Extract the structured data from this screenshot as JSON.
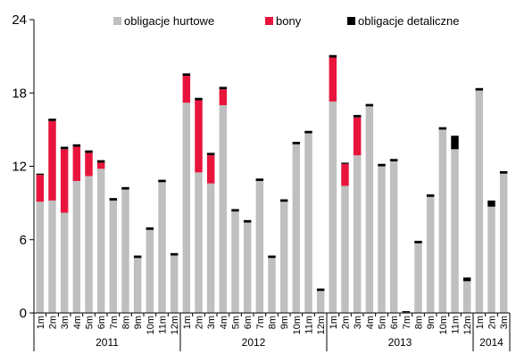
{
  "chart_data": {
    "type": "bar",
    "stacked": true,
    "y_ticks": [
      "0",
      "6",
      "12",
      "18",
      "24"
    ],
    "ylim": [
      0,
      24
    ],
    "grid": false,
    "legend_position": "top",
    "categories": [
      "1m",
      "2m",
      "3m",
      "4m",
      "5m",
      "6m",
      "7m",
      "8m",
      "9m",
      "10m",
      "11m",
      "12m",
      "1m",
      "2m",
      "3m",
      "4m",
      "5m",
      "6m",
      "7m",
      "8m",
      "9m",
      "10m",
      "11m",
      "12m",
      "1m",
      "2m",
      "3m",
      "4m",
      "5m",
      "6m",
      "7m",
      "8m",
      "9m",
      "10m",
      "11m",
      "12m",
      "1m",
      "2m",
      "3m"
    ],
    "years": [
      {
        "label": "2011",
        "span": 12
      },
      {
        "label": "2012",
        "span": 12
      },
      {
        "label": "2013",
        "span": 12
      },
      {
        "label": "2014",
        "span": 3
      }
    ],
    "series": [
      {
        "name": "obligacje hurtowe",
        "color": "#bfbfbf",
        "values": [
          9.1,
          9.2,
          8.2,
          10.8,
          11.2,
          11.8,
          9.2,
          10.1,
          4.5,
          6.8,
          10.7,
          4.7,
          17.2,
          11.5,
          10.6,
          17.0,
          8.3,
          7.4,
          10.8,
          4.5,
          9.1,
          13.8,
          14.7,
          1.8,
          17.3,
          10.4,
          12.9,
          16.9,
          12.0,
          12.4,
          0.05,
          5.7,
          9.5,
          15.0,
          13.4,
          2.6,
          18.2,
          8.7,
          11.4
        ]
      },
      {
        "name": "bony",
        "color": "#e8143c",
        "values": [
          2.2,
          6.5,
          5.2,
          2.8,
          1.9,
          0.5,
          0,
          0,
          0,
          0,
          0,
          0,
          2.2,
          5.9,
          2.3,
          1.3,
          0,
          0,
          0,
          0,
          0,
          0,
          0,
          0,
          3.6,
          1.8,
          3.1,
          0,
          0,
          0,
          0,
          0,
          0,
          0,
          0,
          0,
          0,
          0,
          0
        ]
      },
      {
        "name": "obligacje detaliczne",
        "color": "#000000",
        "values": [
          0.1,
          0.2,
          0.2,
          0.2,
          0.2,
          0.2,
          0.2,
          0.2,
          0.2,
          0.2,
          0.2,
          0.2,
          0.2,
          0.2,
          0.2,
          0.2,
          0.2,
          0.2,
          0.2,
          0.2,
          0.2,
          0.2,
          0.2,
          0.2,
          0.2,
          0.1,
          0.2,
          0.2,
          0.2,
          0.2,
          0.1,
          0.2,
          0.2,
          0.2,
          1.1,
          0.3,
          0.2,
          0.5,
          0.2
        ]
      }
    ]
  }
}
